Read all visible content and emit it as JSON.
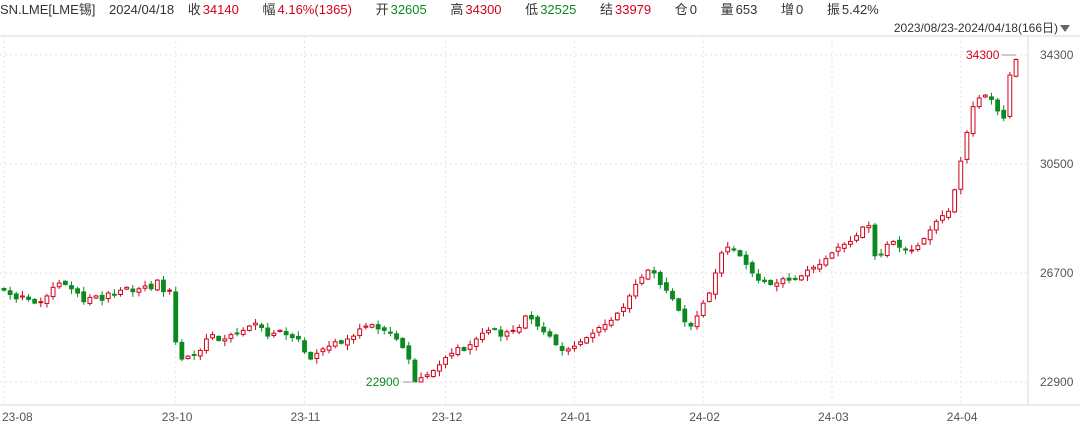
{
  "header": {
    "symbol": "SN.LME[LME锡]",
    "date": "2024/04/18",
    "close_label": "收",
    "close_value": "34140",
    "change_label": "幅",
    "change_value": "4.16%(1365)",
    "open_label": "开",
    "open_value": "32605",
    "high_label": "高",
    "high_value": "34300",
    "low_label": "低",
    "low_value": "32525",
    "settle_label": "结",
    "settle_value": "33979",
    "oi_label": "仓",
    "oi_value": "0",
    "vol_label": "量",
    "vol_value": "653",
    "inc_label": "增",
    "inc_value": "0",
    "amp_label": "振",
    "amp_value": "5.42%"
  },
  "range_label": "2023/08/23-2024/04/18(166日)",
  "colors": {
    "up": "#d0021b",
    "down": "#0a8a1f",
    "grid": "#e3e3e3",
    "axis": "#555555"
  },
  "chart_data": {
    "type": "candlestick",
    "y_ticks": [
      22900,
      26700,
      30500,
      34300
    ],
    "x_ticks": [
      "23-08",
      "23-10",
      "23-11",
      "23-12",
      "24-01",
      "24-02",
      "24-03",
      "24-04"
    ],
    "x_tick_positions": [
      0,
      28,
      49,
      72,
      93,
      114,
      135,
      156
    ],
    "annotations": [
      {
        "label": "34300",
        "index": 165,
        "price": 34300,
        "type": "max"
      },
      {
        "label": "22900",
        "index": 67,
        "price": 22900,
        "type": "min"
      }
    ],
    "closes": [
      26100,
      25950,
      25800,
      25900,
      25780,
      25650,
      25700,
      25900,
      26200,
      26350,
      26300,
      26150,
      26000,
      25700,
      25850,
      25900,
      25750,
      26000,
      25950,
      26100,
      26200,
      26050,
      26150,
      26250,
      26150,
      26450,
      26050,
      26100,
      24300,
      23700,
      23800,
      23850,
      24000,
      24400,
      24550,
      24350,
      24400,
      24550,
      24600,
      24700,
      24850,
      24950,
      24800,
      24500,
      24600,
      24700,
      24550,
      24450,
      24400,
      23950,
      23700,
      23900,
      24050,
      24150,
      24300,
      24250,
      24400,
      24500,
      24750,
      24850,
      24900,
      24750,
      24700,
      24600,
      24400,
      24100,
      23700,
      22900,
      23050,
      23150,
      23300,
      23500,
      23750,
      23900,
      24100,
      24000,
      24200,
      24400,
      24600,
      24700,
      24750,
      24500,
      24650,
      24700,
      24800,
      25200,
      25100,
      24850,
      24650,
      24500,
      24200,
      24000,
      24050,
      24150,
      24300,
      24450,
      24600,
      24800,
      24900,
      25050,
      25300,
      25500,
      25900,
      26300,
      26550,
      26800,
      26700,
      26300,
      26100,
      25800,
      25400,
      25000,
      24850,
      25200,
      25650,
      26000,
      26700,
      27400,
      27600,
      27500,
      27300,
      27000,
      26700,
      26450,
      26400,
      26300,
      26350,
      26500,
      26450,
      26500,
      26600,
      26800,
      26900,
      27000,
      27200,
      27400,
      27600,
      27700,
      27800,
      28000,
      28300,
      28350,
      27300,
      27350,
      27700,
      27800,
      27600,
      27500,
      27500,
      27650,
      27900,
      28200,
      28500,
      28700,
      28850,
      29600,
      30600,
      31600,
      32500,
      32800,
      32900,
      32750,
      32350,
      32100,
      33600,
      34140
    ],
    "date_span": "2023/08/23-2024/04/18",
    "count": 166
  }
}
